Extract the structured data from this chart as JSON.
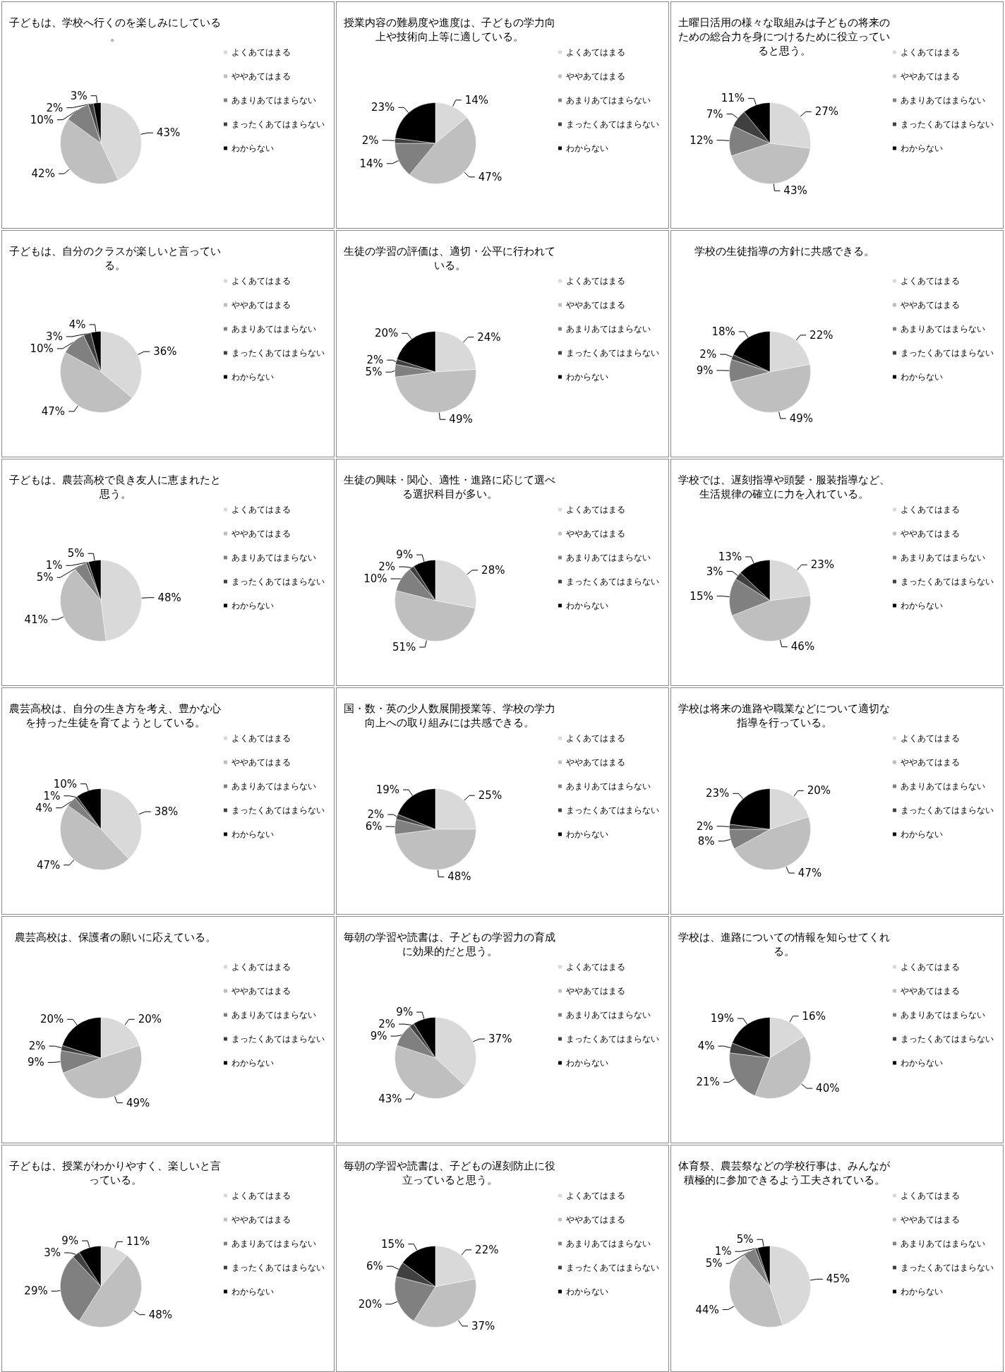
{
  "chart_data": [
    {
      "type": "pie",
      "title": "子どもは、学校へ行くのを楽しみにしている。",
      "categories": [
        "よくあてはまる",
        "ややあてはまる",
        "あまりあてはまらない",
        "まったくあてはまらない",
        "わからない"
      ],
      "values": [
        43,
        42,
        10,
        2,
        3
      ],
      "value_labels": [
        "43%",
        "42%",
        "10%",
        "2%",
        "3%"
      ],
      "colors": [
        "#d9d9d9",
        "#bfbfbf",
        "#808080",
        "#404040",
        "#000000"
      ],
      "legend": "right"
    },
    {
      "type": "pie",
      "title": "授業内容の難易度や進度は、子どもの学力向上や技術向上等に適している。",
      "categories": [
        "よくあてはまる",
        "ややあてはまる",
        "あまりあてはまらない",
        "まったくあてはまらない",
        "わからない"
      ],
      "values": [
        14,
        47,
        14,
        2,
        23
      ],
      "value_labels": [
        "14%",
        "47%",
        "14%",
        "2%",
        "23%"
      ],
      "colors": [
        "#d9d9d9",
        "#bfbfbf",
        "#808080",
        "#404040",
        "#000000"
      ],
      "legend": "right"
    },
    {
      "type": "pie",
      "title": "土曜日活用の様々な取組みは子どもの将来のための総合力を身につけるために役立っていると思う。",
      "categories": [
        "よくあてはまる",
        "ややあてはまる",
        "あまりあてはまらない",
        "まったくあてはまらない",
        "わからない"
      ],
      "values": [
        27,
        43,
        12,
        7,
        11
      ],
      "value_labels": [
        "27%",
        "43%",
        "12%",
        "7%",
        "11%"
      ],
      "colors": [
        "#d9d9d9",
        "#bfbfbf",
        "#808080",
        "#404040",
        "#000000"
      ],
      "legend": "right"
    },
    {
      "type": "pie",
      "title": "子どもは、自分のクラスが楽しいと言っている。",
      "categories": [
        "よくあてはまる",
        "ややあてはまる",
        "あまりあてはまらない",
        "まったくあてはまらない",
        "わからない"
      ],
      "values": [
        36,
        47,
        10,
        3,
        4
      ],
      "value_labels": [
        "36%",
        "47%",
        "10%",
        "3%",
        "4%"
      ],
      "colors": [
        "#d9d9d9",
        "#bfbfbf",
        "#808080",
        "#404040",
        "#000000"
      ],
      "legend": "right"
    },
    {
      "type": "pie",
      "title": "生徒の学習の評価は、適切・公平に行われている。",
      "categories": [
        "よくあてはまる",
        "ややあてはまる",
        "あまりあてはまらない",
        "まったくあてはまらない",
        "わからない"
      ],
      "values": [
        24,
        49,
        5,
        2,
        20
      ],
      "value_labels": [
        "24%",
        "49%",
        "5%",
        "2%",
        "20%"
      ],
      "colors": [
        "#d9d9d9",
        "#bfbfbf",
        "#808080",
        "#404040",
        "#000000"
      ],
      "legend": "right"
    },
    {
      "type": "pie",
      "title": "学校の生徒指導の方針に共感できる。",
      "categories": [
        "よくあてはまる",
        "ややあてはまる",
        "あまりあてはまらない",
        "まったくあてはまらない",
        "わからない"
      ],
      "values": [
        22,
        49,
        9,
        2,
        18
      ],
      "value_labels": [
        "22%",
        "49%",
        "9%",
        "2%",
        "18%"
      ],
      "colors": [
        "#d9d9d9",
        "#bfbfbf",
        "#808080",
        "#404040",
        "#000000"
      ],
      "legend": "right"
    },
    {
      "type": "pie",
      "title": "子どもは、農芸高校で良き友人に恵まれたと思う。",
      "categories": [
        "よくあてはまる",
        "ややあてはまる",
        "あまりあてはまらない",
        "まったくあてはまらない",
        "わからない"
      ],
      "values": [
        48,
        41,
        5,
        1,
        5
      ],
      "value_labels": [
        "48%",
        "41%",
        "5%",
        "1%",
        "5%"
      ],
      "colors": [
        "#d9d9d9",
        "#bfbfbf",
        "#808080",
        "#404040",
        "#000000"
      ],
      "legend": "right"
    },
    {
      "type": "pie",
      "title": "生徒の興味・関心、適性・進路に応じて選べる選択科目が多い。",
      "categories": [
        "よくあてはまる",
        "ややあてはまる",
        "あまりあてはまらない",
        "まったくあてはまらない",
        "わからない"
      ],
      "values": [
        28,
        51,
        10,
        2,
        9
      ],
      "value_labels": [
        "28%",
        "51%",
        "10%",
        "2%",
        "9%"
      ],
      "colors": [
        "#d9d9d9",
        "#bfbfbf",
        "#808080",
        "#404040",
        "#000000"
      ],
      "legend": "right"
    },
    {
      "type": "pie",
      "title": "学校では、遅刻指導や頭髪・服装指導など、生活規律の確立に力を入れている。",
      "categories": [
        "よくあてはまる",
        "ややあてはまる",
        "あまりあてはまらない",
        "まったくあてはまらない",
        "わからない"
      ],
      "values": [
        23,
        46,
        15,
        3,
        13
      ],
      "value_labels": [
        "23%",
        "46%",
        "15%",
        "3%",
        "13%"
      ],
      "colors": [
        "#d9d9d9",
        "#bfbfbf",
        "#808080",
        "#404040",
        "#000000"
      ],
      "legend": "right"
    },
    {
      "type": "pie",
      "title": "農芸高校は、自分の生き方を考え、豊かな心を持った生徒を育てようとしている。",
      "categories": [
        "よくあてはまる",
        "ややあてはまる",
        "あまりあてはまらない",
        "まったくあてはまらない",
        "わからない"
      ],
      "values": [
        38,
        47,
        4,
        1,
        10
      ],
      "value_labels": [
        "38%",
        "47%",
        "4%",
        "1%",
        "10%"
      ],
      "colors": [
        "#d9d9d9",
        "#bfbfbf",
        "#808080",
        "#404040",
        "#000000"
      ],
      "legend": "right"
    },
    {
      "type": "pie",
      "title": "国・数・英の少人数展開授業等、学校の学力向上への取り組みには共感できる。",
      "categories": [
        "よくあてはまる",
        "ややあてはまる",
        "あまりあてはまらない",
        "まったくあてはまらない",
        "わからない"
      ],
      "values": [
        25,
        48,
        6,
        2,
        19
      ],
      "value_labels": [
        "25%",
        "48%",
        "6%",
        "2%",
        "19%"
      ],
      "colors": [
        "#d9d9d9",
        "#bfbfbf",
        "#808080",
        "#404040",
        "#000000"
      ],
      "legend": "right"
    },
    {
      "type": "pie",
      "title": "学校は将来の進路や職業などについて適切な指導を行っている。",
      "categories": [
        "よくあてはまる",
        "ややあてはまる",
        "あまりあてはまらない",
        "まったくあてはまらない",
        "わからない"
      ],
      "values": [
        20,
        47,
        8,
        2,
        23
      ],
      "value_labels": [
        "20%",
        "47%",
        "8%",
        "2%",
        "23%"
      ],
      "colors": [
        "#d9d9d9",
        "#bfbfbf",
        "#808080",
        "#404040",
        "#000000"
      ],
      "legend": "right"
    },
    {
      "type": "pie",
      "title": "農芸高校は、保護者の願いに応えている。",
      "categories": [
        "よくあてはまる",
        "ややあてはまる",
        "あまりあてはまらない",
        "まったくあてはまらない",
        "わからない"
      ],
      "values": [
        20,
        49,
        9,
        2,
        20
      ],
      "value_labels": [
        "20%",
        "49%",
        "9%",
        "2%",
        "20%"
      ],
      "colors": [
        "#d9d9d9",
        "#bfbfbf",
        "#808080",
        "#404040",
        "#000000"
      ],
      "legend": "right"
    },
    {
      "type": "pie",
      "title": "毎朝の学習や読書は、子どもの学習力の育成に効果的だと思う。",
      "categories": [
        "よくあてはまる",
        "ややあてはまる",
        "あまりあてはまらない",
        "まったくあてはまらない",
        "わからない"
      ],
      "values": [
        37,
        43,
        9,
        2,
        9
      ],
      "value_labels": [
        "37%",
        "43%",
        "9%",
        "2%",
        "9%"
      ],
      "colors": [
        "#d9d9d9",
        "#bfbfbf",
        "#808080",
        "#404040",
        "#000000"
      ],
      "legend": "right"
    },
    {
      "type": "pie",
      "title": "学校は、進路についての情報を知らせてくれる。",
      "categories": [
        "よくあてはまる",
        "ややあてはまる",
        "あまりあてはまらない",
        "まったくあてはまらない",
        "わからない"
      ],
      "values": [
        16,
        40,
        21,
        4,
        19
      ],
      "value_labels": [
        "16%",
        "40%",
        "21%",
        "4%",
        "19%"
      ],
      "colors": [
        "#d9d9d9",
        "#bfbfbf",
        "#808080",
        "#404040",
        "#000000"
      ],
      "legend": "right"
    },
    {
      "type": "pie",
      "title": "子どもは、授業がわかりやすく、楽しいと言っている。",
      "categories": [
        "よくあてはまる",
        "ややあてはまる",
        "あまりあてはまらない",
        "まったくあてはまらない",
        "わからない"
      ],
      "values": [
        11,
        48,
        29,
        3,
        9
      ],
      "value_labels": [
        "11%",
        "48%",
        "29%",
        "3%",
        "9%"
      ],
      "colors": [
        "#d9d9d9",
        "#bfbfbf",
        "#808080",
        "#404040",
        "#000000"
      ],
      "legend": "right"
    },
    {
      "type": "pie",
      "title": "毎朝の学習や読書は、子どもの遅刻防止に役立っていると思う。",
      "categories": [
        "よくあてはまる",
        "ややあてはまる",
        "あまりあてはまらない",
        "まったくあてはまらない",
        "わからない"
      ],
      "values": [
        22,
        37,
        20,
        6,
        15
      ],
      "value_labels": [
        "22%",
        "37%",
        "20%",
        "6%",
        "15%"
      ],
      "colors": [
        "#d9d9d9",
        "#bfbfbf",
        "#808080",
        "#404040",
        "#000000"
      ],
      "legend": "right"
    },
    {
      "type": "pie",
      "title": "体育祭、農芸祭などの学校行事は、みんなが積極的に参加できるよう工夫されている。",
      "categories": [
        "よくあてはまる",
        "ややあてはまる",
        "あまりあてはまらない",
        "まったくあてはまらない",
        "わからない"
      ],
      "values": [
        45,
        44,
        5,
        1,
        5
      ],
      "value_labels": [
        "45%",
        "44%",
        "5%",
        "1%",
        "5%"
      ],
      "colors": [
        "#d9d9d9",
        "#bfbfbf",
        "#808080",
        "#404040",
        "#000000"
      ],
      "legend": "right"
    }
  ]
}
